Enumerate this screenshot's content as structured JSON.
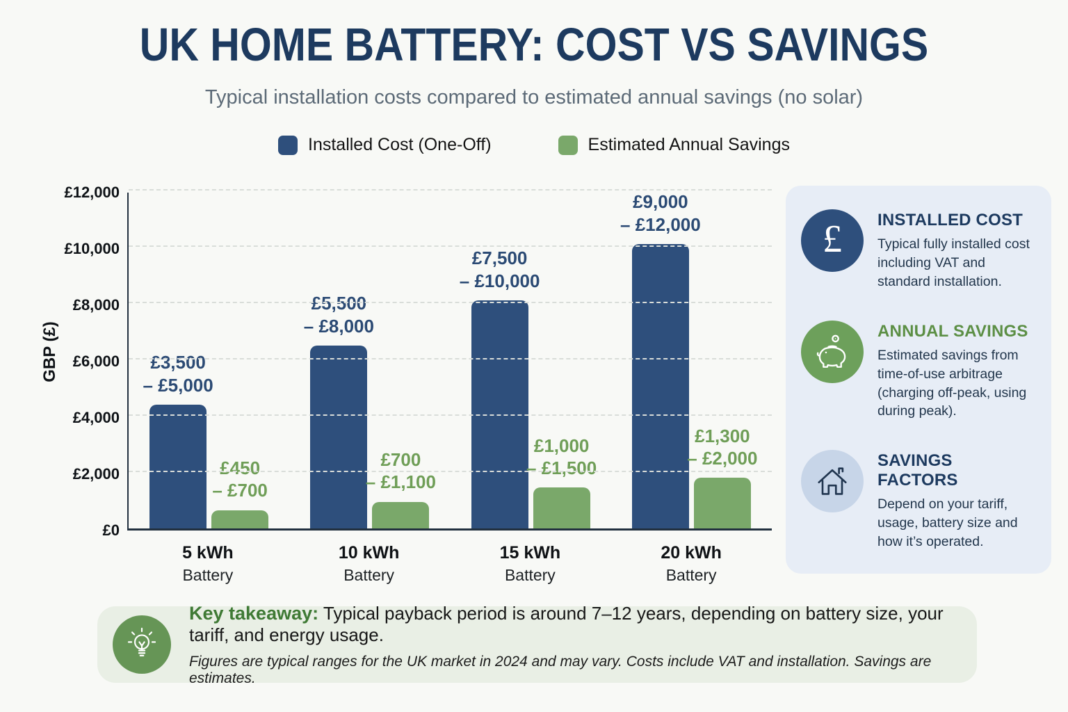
{
  "title": "UK HOME BATTERY: COST VS SAVINGS",
  "subtitle": "Typical installation costs compared to estimated annual savings (no solar)",
  "colors": {
    "cost_blue": "#2e4f7c",
    "savings_green": "#7aa86a",
    "title_navy": "#1d3a5f",
    "green_heading": "#5c8f45",
    "blue_label": "#2b4a74",
    "green_label": "#6f9e57",
    "sidebar_bg": "#e7edf6",
    "takeaway_bg": "#e9efe5"
  },
  "legend": [
    {
      "label": "Installed Cost (One-Off)",
      "color": "#2e4f7c"
    },
    {
      "label": "Estimated Annual Savings",
      "color": "#7aa86a"
    }
  ],
  "chart_data": {
    "type": "bar",
    "title": "UK Home Battery: Cost vs Savings",
    "categories": [
      "5 kWh",
      "10 kWh",
      "15 kWh",
      "20 kWh"
    ],
    "category_sub": "Battery",
    "xlabel": "",
    "ylabel": "GBP (£)",
    "ylim": [
      0,
      12000
    ],
    "grid": true,
    "legend_position": "top",
    "ytick_values": [
      0,
      2000,
      4000,
      6000,
      8000,
      10000,
      12000
    ],
    "ytick_labels": [
      "£0",
      "£2,000",
      "£4,000",
      "£6,000",
      "£8,000",
      "£10,000",
      "£12,000"
    ],
    "series": [
      {
        "name": "Installed Cost (One-Off)",
        "color": "#2e4f7c",
        "label_color": "#2b4a74",
        "values": [
          4400,
          6500,
          8100,
          10100
        ],
        "range_labels": [
          [
            "£3,500",
            "– £5,000"
          ],
          [
            "£5,500",
            "– £8,000"
          ],
          [
            "£7,500",
            "– £10,000"
          ],
          [
            "£9,000",
            "– £12,000"
          ]
        ]
      },
      {
        "name": "Estimated Annual Savings",
        "color": "#7aa86a",
        "label_color": "#6f9e57",
        "values": [
          650,
          950,
          1450,
          1800
        ],
        "range_labels": [
          [
            "£450",
            "– £700"
          ],
          [
            "£700",
            "– £1,100"
          ],
          [
            "£1,000",
            "– £1,500"
          ],
          [
            "£1,300",
            "– £2,000"
          ]
        ]
      }
    ]
  },
  "sidebar": {
    "items": [
      {
        "icon": "pound-icon",
        "icon_glyph": "£",
        "icon_bg": "#2e4f7c",
        "title": "INSTALLED COST",
        "title_color": "#1d3a5f",
        "body": "Typical fully installed cost including VAT and standard installation."
      },
      {
        "icon": "piggy-bank-icon",
        "icon_bg": "#6da05b",
        "title": "ANNUAL SAVINGS",
        "title_color": "#5c8f45",
        "body": "Estimated savings from time-of-use arbitrage (charging off-peak, using during peak)."
      },
      {
        "icon": "house-icon",
        "icon_bg": "#c7d5e8",
        "title": "SAVINGS FACTORS",
        "title_color": "#1d3a5f",
        "body": "Depend on your tariff, usage, battery size and how it’s operated."
      }
    ]
  },
  "takeaway": {
    "icon": "lightbulb-icon",
    "icon_bg": "#669556",
    "label": "Key takeaway:",
    "label_color": "#3f7a35",
    "text": " Typical payback period is around 7–12 years, depending on battery size, your tariff, and energy usage.",
    "footnote": "Figures are typical ranges for the UK market in 2024 and may vary. Costs include VAT and installation. Savings are estimates."
  }
}
